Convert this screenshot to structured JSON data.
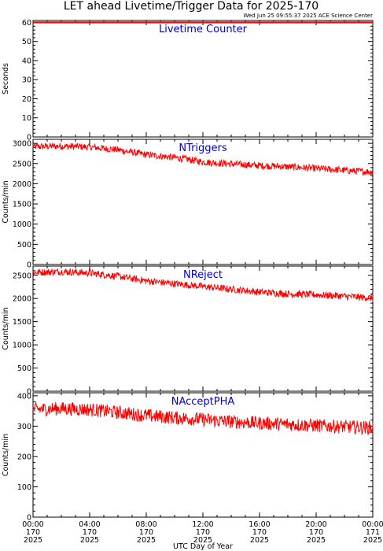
{
  "header": {
    "title": "LET ahead Livetime/Trigger Data for 2025-170",
    "timestamp": "Wed Jun 25 09:55:37 2025 ACE Science Center"
  },
  "colors": {
    "series": "#ff0000",
    "panel_label": "#0000cc",
    "axis": "#000000"
  },
  "x_axis": {
    "label": "UTC Day of Year",
    "range_hours": [
      0,
      24
    ],
    "ticks": [
      {
        "time": "00:00",
        "day": "170",
        "year": "2025",
        "hour": 0
      },
      {
        "time": "04:00",
        "day": "170",
        "year": "2025",
        "hour": 4
      },
      {
        "time": "08:00",
        "day": "170",
        "year": "2025",
        "hour": 8
      },
      {
        "time": "12:00",
        "day": "170",
        "year": "2025",
        "hour": 12
      },
      {
        "time": "16:00",
        "day": "170",
        "year": "2025",
        "hour": 16
      },
      {
        "time": "20:00",
        "day": "170",
        "year": "2025",
        "hour": 20
      },
      {
        "time": "00:00",
        "day": "171",
        "year": "2025",
        "hour": 24
      }
    ]
  },
  "chart_data": [
    {
      "type": "line",
      "title": "Livetime Counter",
      "ylabel": "Seconds",
      "ylim": [
        0,
        61
      ],
      "yticks": [
        0,
        10,
        20,
        30,
        40,
        50,
        60
      ],
      "x_hours": [
        0,
        24
      ],
      "values": [
        60,
        60
      ]
    },
    {
      "type": "line",
      "title": "NTriggers",
      "ylabel": "Counts/min",
      "ylim": [
        0,
        3100
      ],
      "yticks": [
        0,
        500,
        1000,
        1500,
        2000,
        2500,
        3000
      ],
      "x_hours": [
        0,
        2,
        4,
        6,
        8,
        10,
        11,
        12,
        14,
        16,
        18,
        20,
        22,
        24
      ],
      "values": [
        2920,
        2930,
        2910,
        2840,
        2720,
        2650,
        2600,
        2540,
        2490,
        2450,
        2420,
        2380,
        2330,
        2290
      ]
    },
    {
      "type": "line",
      "title": "NReject",
      "ylabel": "Counts/min",
      "ylim": [
        0,
        2700
      ],
      "yticks": [
        0,
        500,
        1000,
        1500,
        2000,
        2500
      ],
      "x_hours": [
        0,
        2,
        4,
        6,
        8,
        10,
        12,
        14,
        16,
        18,
        20,
        22,
        24
      ],
      "values": [
        2560,
        2580,
        2550,
        2480,
        2380,
        2320,
        2260,
        2200,
        2140,
        2100,
        2080,
        2050,
        2010
      ]
    },
    {
      "type": "line",
      "title": "NAcceptPHA",
      "ylabel": "Counts/min",
      "ylim": [
        0,
        410
      ],
      "yticks": [
        0,
        100,
        200,
        300,
        400
      ],
      "x_hours": [
        0,
        2,
        4,
        6,
        8,
        10,
        12,
        14,
        16,
        18,
        20,
        22,
        24
      ],
      "values": [
        355,
        358,
        355,
        345,
        335,
        328,
        322,
        315,
        310,
        306,
        302,
        298,
        295
      ]
    }
  ]
}
